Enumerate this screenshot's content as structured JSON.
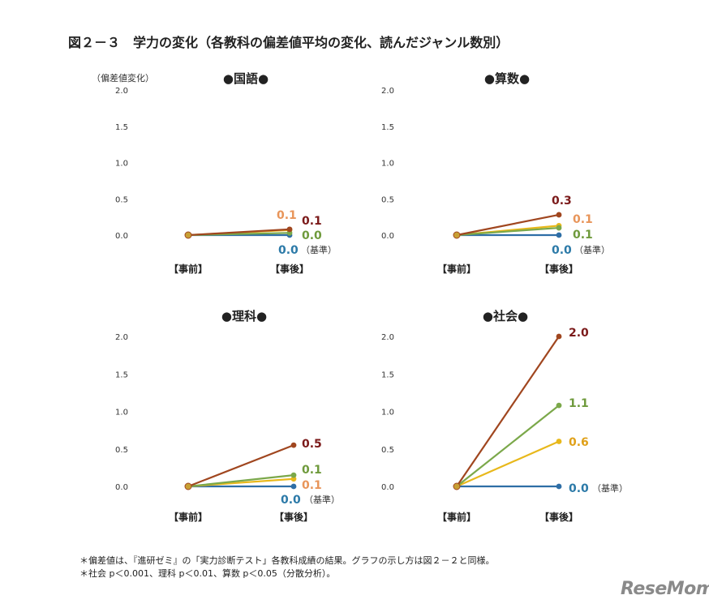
{
  "title": "図２－３　学力の変化（各教科の偏差値平均の変化、読んだジャンル数別）",
  "y_unit_label": "（偏差値変化）",
  "footnotes": [
    "＊偏差値は、『進研ゼミ』の「実力診断テスト」各教科成績の結果。グラフの示し方は図２－２と同様。",
    "＊社会 p＜0.001、理科 p＜0.01、算数 p＜0.05（分散分析）。"
  ],
  "logo_text": "ReseMom",
  "colors": {
    "brown": "#a0461f",
    "green": "#7ba84a",
    "yellow": "#e8b81b",
    "blue": "#2e6ea6",
    "orange_label": "#e8955a",
    "dark_label": "#7b1a1a",
    "green_label": "#6f9a3c",
    "blue_label": "#2c7aa8",
    "yellow_label": "#e0a11a"
  },
  "chart_data": [
    {
      "type": "line",
      "title": "●国語●",
      "categories": [
        "【事前】",
        "【事後】"
      ],
      "ylim": [
        0,
        2.0
      ],
      "yticks": [
        "0.0",
        "0.5",
        "1.0",
        "1.5",
        "2.0"
      ],
      "series": [
        {
          "name": "brown",
          "values": [
            0,
            0.08
          ],
          "label": "0.1",
          "label_color": "dark_label"
        },
        {
          "name": "yellow",
          "values": [
            0,
            0.07
          ],
          "label": "0.1",
          "label_color": "orange_label"
        },
        {
          "name": "green",
          "values": [
            0,
            0.03
          ],
          "label": "0.0",
          "label_color": "green_label"
        },
        {
          "name": "blue",
          "values": [
            0,
            0.0
          ],
          "label": "0.0",
          "label_color": "blue_label",
          "note": "（基準）"
        }
      ]
    },
    {
      "type": "line",
      "title": "●算数●",
      "categories": [
        "【事前】",
        "【事後】"
      ],
      "ylim": [
        0,
        2.0
      ],
      "yticks": [
        "0.0",
        "0.5",
        "1.0",
        "1.5",
        "2.0"
      ],
      "series": [
        {
          "name": "brown",
          "values": [
            0,
            0.28
          ],
          "label": "0.3",
          "label_color": "dark_label"
        },
        {
          "name": "yellow",
          "values": [
            0,
            0.13
          ],
          "label": "0.1",
          "label_color": "orange_label"
        },
        {
          "name": "green",
          "values": [
            0,
            0.1
          ],
          "label": "0.1",
          "label_color": "green_label"
        },
        {
          "name": "blue",
          "values": [
            0,
            0.0
          ],
          "label": "0.0",
          "label_color": "blue_label",
          "note": "（基準）"
        }
      ]
    },
    {
      "type": "line",
      "title": "●理科●",
      "categories": [
        "【事前】",
        "【事後】"
      ],
      "ylim": [
        0,
        2.0
      ],
      "yticks": [
        "0.0",
        "0.5",
        "1.0",
        "1.5",
        "2.0"
      ],
      "series": [
        {
          "name": "brown",
          "values": [
            0,
            0.55
          ],
          "label": "0.5",
          "label_color": "dark_label"
        },
        {
          "name": "green",
          "values": [
            0,
            0.15
          ],
          "label": "0.1",
          "label_color": "green_label"
        },
        {
          "name": "yellow",
          "values": [
            0,
            0.1
          ],
          "label": "0.1",
          "label_color": "orange_label"
        },
        {
          "name": "blue",
          "values": [
            0,
            0.0
          ],
          "label": "0.0",
          "label_color": "blue_label",
          "note": "（基準）"
        }
      ]
    },
    {
      "type": "line",
      "title": "●社会●",
      "categories": [
        "【事前】",
        "【事後】"
      ],
      "ylim": [
        0,
        2.0
      ],
      "yticks": [
        "0.0",
        "0.5",
        "1.0",
        "1.5",
        "2.0"
      ],
      "series": [
        {
          "name": "brown",
          "values": [
            0,
            2.0
          ],
          "label": "2.0",
          "label_color": "dark_label"
        },
        {
          "name": "green",
          "values": [
            0,
            1.08
          ],
          "label": "1.1",
          "label_color": "green_label"
        },
        {
          "name": "yellow",
          "values": [
            0,
            0.6
          ],
          "label": "0.6",
          "label_color": "yellow_label"
        },
        {
          "name": "blue",
          "values": [
            0,
            0.0
          ],
          "label": "0.0",
          "label_color": "blue_label",
          "note": "（基準）"
        }
      ]
    }
  ]
}
